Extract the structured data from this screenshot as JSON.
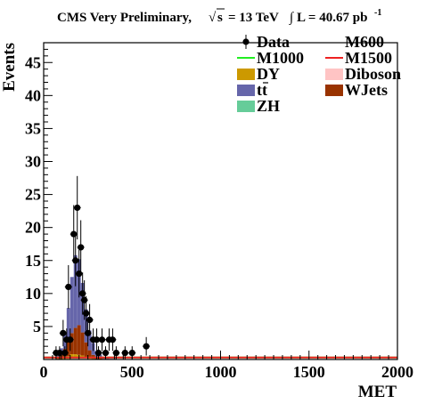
{
  "chart_data": {
    "type": "bar",
    "title_prefix": "CMS Very Preliminary,",
    "title_energy": "= 13 TeV",
    "title_lumi": "L = 40.67 pb",
    "title_lumi_sup": "-1",
    "xlabel": "MET",
    "ylabel": "Events",
    "xlim": [
      0,
      2000
    ],
    "ylim": [
      0,
      48
    ],
    "x_ticks": [
      0,
      500,
      1000,
      1500,
      2000
    ],
    "y_ticks": [
      5,
      10,
      15,
      20,
      25,
      30,
      35,
      40,
      45
    ],
    "stack_order": [
      "ZH",
      "Diboson",
      "DY",
      "WJets",
      "tt"
    ],
    "bins": [
      {
        "x": 80,
        "tt": 0.3,
        "WJets": 0.2,
        "DY": 0.1,
        "Diboson": 0.0,
        "ZH": 0.0
      },
      {
        "x": 100,
        "tt": 1.0,
        "WJets": 0.5,
        "DY": 0.2,
        "Diboson": 0.0,
        "ZH": 0.0
      },
      {
        "x": 120,
        "tt": 2.5,
        "WJets": 1.2,
        "DY": 0.3,
        "Diboson": 0.1,
        "ZH": 0.0
      },
      {
        "x": 140,
        "tt": 5.0,
        "WJets": 2.3,
        "DY": 0.4,
        "Diboson": 0.1,
        "ZH": 0.0
      },
      {
        "x": 160,
        "tt": 8.5,
        "WJets": 3.2,
        "DY": 0.5,
        "Diboson": 0.2,
        "ZH": 0.1
      },
      {
        "x": 180,
        "tt": 11.0,
        "WJets": 4.0,
        "DY": 0.5,
        "Diboson": 0.2,
        "ZH": 0.1
      },
      {
        "x": 200,
        "tt": 10.0,
        "WJets": 4.5,
        "DY": 0.4,
        "Diboson": 0.2,
        "ZH": 0.1
      },
      {
        "x": 220,
        "tt": 7.5,
        "WJets": 3.5,
        "DY": 0.3,
        "Diboson": 0.2,
        "ZH": 0.1
      },
      {
        "x": 240,
        "tt": 5.0,
        "WJets": 2.2,
        "DY": 0.2,
        "Diboson": 0.1,
        "ZH": 0.1
      },
      {
        "x": 260,
        "tt": 3.0,
        "WJets": 1.2,
        "DY": 0.1,
        "Diboson": 0.1,
        "ZH": 0.0
      },
      {
        "x": 280,
        "tt": 1.8,
        "WJets": 0.6,
        "DY": 0.1,
        "Diboson": 0.0,
        "ZH": 0.0
      },
      {
        "x": 300,
        "tt": 1.0,
        "WJets": 0.3,
        "DY": 0.0,
        "Diboson": 0.0,
        "ZH": 0.0
      },
      {
        "x": 320,
        "tt": 0.5,
        "WJets": 0.2,
        "DY": 0.0,
        "Diboson": 0.0,
        "ZH": 0.0
      },
      {
        "x": 340,
        "tt": 0.3,
        "WJets": 0.1,
        "DY": 0.0,
        "Diboson": 0.0,
        "ZH": 0.0
      },
      {
        "x": 360,
        "tt": 0.2,
        "WJets": 0.1,
        "DY": 0.0,
        "Diboson": 0.0,
        "ZH": 0.0
      },
      {
        "x": 380,
        "tt": 0.1,
        "WJets": 0.0,
        "DY": 0.0,
        "Diboson": 0.0,
        "ZH": 0.0
      },
      {
        "x": 400,
        "tt": 0.1,
        "WJets": 0.0,
        "DY": 0.0,
        "Diboson": 0.0,
        "ZH": 0.0
      }
    ],
    "bin_width": 20,
    "signals": [
      {
        "name": "M1000",
        "color": "#22ee22",
        "value": 0.3
      },
      {
        "name": "M1500",
        "color": "#ee2222",
        "value": 0.3
      }
    ],
    "data_points": [
      {
        "x": 70,
        "y": 1,
        "err": 1.0
      },
      {
        "x": 90,
        "y": 1,
        "err": 1.0
      },
      {
        "x": 110,
        "y": 4,
        "err": 2.0
      },
      {
        "x": 120,
        "y": 1,
        "err": 1.0
      },
      {
        "x": 130,
        "y": 3,
        "err": 1.7
      },
      {
        "x": 140,
        "y": 11,
        "err": 3.3
      },
      {
        "x": 150,
        "y": 3,
        "err": 1.7
      },
      {
        "x": 170,
        "y": 19,
        "err": 4.4
      },
      {
        "x": 180,
        "y": 15,
        "err": 3.9
      },
      {
        "x": 190,
        "y": 23,
        "err": 4.8
      },
      {
        "x": 200,
        "y": 13,
        "err": 3.6
      },
      {
        "x": 210,
        "y": 17,
        "err": 4.1
      },
      {
        "x": 220,
        "y": 10,
        "err": 3.2
      },
      {
        "x": 230,
        "y": 9,
        "err": 3.0
      },
      {
        "x": 240,
        "y": 7,
        "err": 2.6
      },
      {
        "x": 250,
        "y": 4,
        "err": 2.0
      },
      {
        "x": 260,
        "y": 6,
        "err": 2.4
      },
      {
        "x": 280,
        "y": 3,
        "err": 1.7
      },
      {
        "x": 300,
        "y": 3,
        "err": 1.7
      },
      {
        "x": 310,
        "y": 1,
        "err": 1.0
      },
      {
        "x": 330,
        "y": 3,
        "err": 1.7
      },
      {
        "x": 350,
        "y": 1,
        "err": 1.0
      },
      {
        "x": 370,
        "y": 3,
        "err": 1.7
      },
      {
        "x": 390,
        "y": 3,
        "err": 1.7
      },
      {
        "x": 410,
        "y": 1,
        "err": 1.0
      },
      {
        "x": 460,
        "y": 1,
        "err": 1.0
      },
      {
        "x": 500,
        "y": 1,
        "err": 1.0
      },
      {
        "x": 580,
        "y": 2,
        "err": 1.4
      }
    ],
    "legend": [
      {
        "key": "data",
        "label": "Data",
        "kind": "marker"
      },
      {
        "key": "M600",
        "label": "M600",
        "kind": "none"
      },
      {
        "key": "M1000",
        "label": "M1000",
        "kind": "line",
        "color": "#22ee22"
      },
      {
        "key": "M1500",
        "label": "M1500",
        "kind": "line",
        "color": "#ee2222"
      },
      {
        "key": "DY",
        "label": "DY",
        "kind": "box",
        "color": "#cc9900"
      },
      {
        "key": "Diboson",
        "label": "Diboson",
        "kind": "box",
        "color": "#ffc4c4"
      },
      {
        "key": "tt",
        "label": "tt",
        "kind": "box",
        "color": "#6666aa",
        "overline": true
      },
      {
        "key": "WJets",
        "label": "WJets",
        "kind": "box",
        "color": "#993300"
      },
      {
        "key": "ZH",
        "label": "ZH",
        "kind": "box",
        "color": "#66cc99"
      }
    ],
    "colors": {
      "tt": "#6666aa",
      "WJets": "#993300",
      "DY": "#cc9900",
      "Diboson": "#ffc4c4",
      "ZH": "#66cc99",
      "data": "#000000"
    }
  }
}
